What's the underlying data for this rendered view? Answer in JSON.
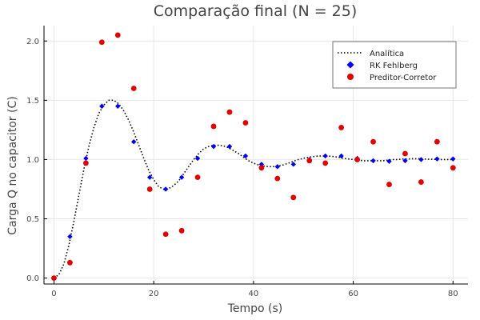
{
  "chart_data": {
    "type": "scatter",
    "title": "Comparação final (N = 25)",
    "xlabel": "Tempo (s)",
    "ylabel": "Carga Q no capacitor (C)",
    "xlim": [
      -2,
      83
    ],
    "ylim": [
      -0.05,
      2.13
    ],
    "xticks": [
      0,
      20,
      40,
      60,
      80
    ],
    "yticks": [
      0.0,
      0.5,
      1.0,
      1.5,
      2.0
    ],
    "xtick_labels": [
      "0",
      "20",
      "40",
      "60",
      "80"
    ],
    "ytick_labels": [
      "0.0",
      "0.5",
      "1.0",
      "1.5",
      "2.0"
    ],
    "grid": true,
    "legend_position": "top-right",
    "series": [
      {
        "name": "Analítica",
        "kind": "line",
        "style": "dotted",
        "color": "#000000",
        "x": [
          0,
          1,
          2,
          3,
          4,
          5,
          6,
          7,
          8,
          9,
          10,
          11,
          12,
          13,
          14,
          15,
          16,
          17,
          18,
          19,
          20,
          21,
          22,
          23,
          24,
          25,
          26,
          27,
          28,
          29,
          30,
          31,
          32,
          33,
          34,
          35,
          36,
          37,
          38,
          39,
          40,
          41,
          42,
          43,
          44,
          45,
          46,
          47,
          48,
          49,
          50,
          51,
          52,
          53,
          54,
          55,
          56,
          57,
          58,
          59,
          60,
          61,
          62,
          63,
          64,
          65,
          66,
          67,
          68,
          69,
          70,
          71,
          72,
          73,
          74,
          75,
          76,
          77,
          78,
          79,
          80
        ],
        "y": [
          0,
          0.03,
          0.12,
          0.28,
          0.48,
          0.7,
          0.92,
          1.11,
          1.27,
          1.39,
          1.46,
          1.5,
          1.5,
          1.47,
          1.41,
          1.33,
          1.23,
          1.12,
          1.01,
          0.91,
          0.83,
          0.77,
          0.75,
          0.755,
          0.78,
          0.82,
          0.88,
          0.94,
          1.0,
          1.05,
          1.09,
          1.11,
          1.12,
          1.12,
          1.115,
          1.1,
          1.075,
          1.05,
          1.02,
          0.99,
          0.97,
          0.955,
          0.945,
          0.94,
          0.94,
          0.945,
          0.955,
          0.97,
          0.985,
          1.0,
          1.01,
          1.02,
          1.025,
          1.03,
          1.03,
          1.03,
          1.025,
          1.02,
          1.01,
          1.005,
          1.0,
          0.995,
          0.99,
          0.99,
          0.99,
          0.99,
          0.99,
          0.995,
          1.0,
          1.0,
          1.005,
          1.005,
          1.007,
          1.007,
          1.005,
          1.003,
          1.002,
          1.0,
          1.0,
          1.0,
          1.0
        ]
      },
      {
        "name": "RK Fehlberg",
        "kind": "scatter",
        "marker": "diamond",
        "color": "#0000ff",
        "x": [
          0,
          3.2,
          6.4,
          9.6,
          12.8,
          16,
          19.2,
          22.4,
          25.6,
          28.8,
          32,
          35.2,
          38.4,
          41.6,
          44.8,
          48,
          51.2,
          54.4,
          57.6,
          60.8,
          64,
          67.2,
          70.4,
          73.6,
          76.8,
          80
        ],
        "y": [
          0.0,
          0.35,
          1.01,
          1.45,
          1.45,
          1.15,
          0.85,
          0.75,
          0.85,
          1.01,
          1.11,
          1.11,
          1.03,
          0.96,
          0.94,
          0.96,
          1.0,
          1.03,
          1.03,
          1.01,
          0.99,
          0.985,
          0.99,
          1.0,
          1.005,
          1.005
        ]
      },
      {
        "name": "Preditor-Corretor",
        "kind": "scatter",
        "marker": "circle",
        "color": "#e60000",
        "x": [
          0,
          3.2,
          6.4,
          9.6,
          12.8,
          16,
          19.2,
          22.4,
          25.6,
          28.8,
          32,
          35.2,
          38.4,
          41.6,
          44.8,
          48,
          51.2,
          54.4,
          57.6,
          60.8,
          64,
          67.2,
          70.4,
          73.6,
          76.8,
          80
        ],
        "y": [
          0.0,
          0.13,
          0.97,
          1.99,
          2.05,
          1.6,
          0.75,
          0.37,
          0.4,
          0.85,
          1.28,
          1.4,
          1.31,
          0.93,
          0.84,
          0.68,
          0.99,
          0.97,
          1.27,
          1.0,
          1.15,
          0.79,
          1.05,
          0.81,
          1.15,
          0.93
        ]
      }
    ]
  }
}
